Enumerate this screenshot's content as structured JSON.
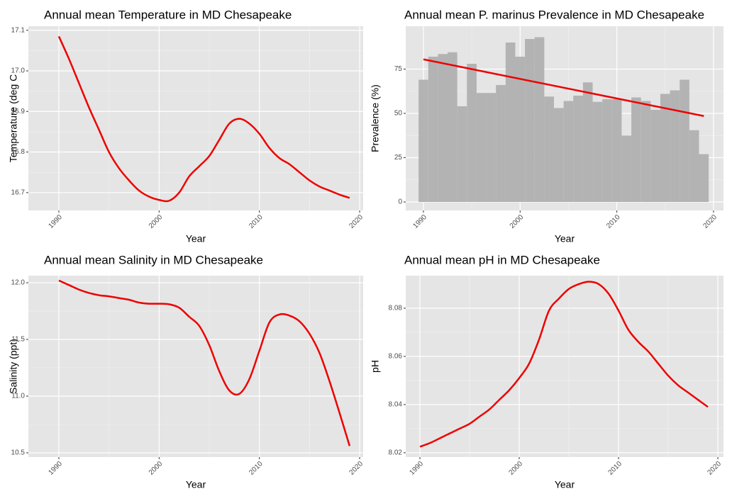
{
  "chart_data": [
    {
      "type": "line",
      "title": "Annual mean Temperature in MD Chesapeake",
      "x_label": "Year",
      "y_label": "Temperature (deg C",
      "x": [
        1990,
        1991,
        1992,
        1993,
        1994,
        1995,
        1996,
        1997,
        1998,
        1999,
        2000,
        2001,
        2002,
        2003,
        2004,
        2005,
        2006,
        2007,
        2008,
        2009,
        2010,
        2011,
        2012,
        2013,
        2014,
        2015,
        2016,
        2017,
        2018,
        2019
      ],
      "values": [
        17.085,
        17.03,
        16.97,
        16.91,
        16.855,
        16.8,
        16.76,
        16.73,
        16.705,
        16.69,
        16.682,
        16.68,
        16.7,
        16.74,
        16.765,
        16.79,
        16.83,
        16.87,
        16.882,
        16.87,
        16.845,
        16.81,
        16.785,
        16.77,
        16.75,
        16.73,
        16.715,
        16.705,
        16.695,
        16.687
      ],
      "color": "#ee0000",
      "xlim": [
        1986.96,
        2020.35
      ],
      "ylim": [
        16.656,
        17.11
      ],
      "xticks": [
        1990,
        2000,
        2010,
        2020
      ],
      "yticks": [
        16.7,
        16.8,
        16.9,
        {
          "value": 17,
          "label": "17.0"
        },
        17.1
      ],
      "grid": true
    },
    {
      "type": "bar",
      "title": "Annual mean P. marinus Prevalence in MD Chesapeake",
      "x_label": "Year",
      "y_label": "Prevalence (%)",
      "x": [
        1990,
        1991,
        1992,
        1993,
        1994,
        1995,
        1996,
        1997,
        1998,
        1999,
        2000,
        2001,
        2002,
        2003,
        2004,
        2005,
        2006,
        2007,
        2008,
        2009,
        2010,
        2011,
        2012,
        2013,
        2014,
        2015,
        2016,
        2017,
        2018,
        2019
      ],
      "values": [
        69,
        82,
        83.5,
        84.5,
        54,
        78,
        61.5,
        61.5,
        66,
        90,
        82,
        92,
        93,
        59.5,
        53,
        57,
        60,
        67.5,
        56.5,
        58,
        58,
        37.5,
        59,
        57,
        52,
        61,
        63,
        69,
        40.5,
        27
      ],
      "color": "#b3b3b3",
      "trendline": {
        "x": [
          1990,
          2019
        ],
        "values": [
          80.5,
          48.5
        ],
        "color": "#ee0000"
      },
      "xlim": [
        1988.17,
        2021.03
      ],
      "ylim": [
        -4.8,
        99.2
      ],
      "xticks": [
        1990,
        2000,
        2010,
        2020
      ],
      "yticks": [
        0,
        25,
        50,
        75
      ],
      "grid": true
    },
    {
      "type": "line",
      "title": "Annual mean Salinity in MD Chesapeake",
      "x_label": "Year",
      "y_label": "Salinity (ppt)",
      "x": [
        1990,
        1991,
        1992,
        1993,
        1994,
        1995,
        1996,
        1997,
        1998,
        1999,
        2000,
        2001,
        2002,
        2003,
        2004,
        2005,
        2006,
        2007,
        2008,
        2009,
        2010,
        2011,
        2012,
        2013,
        2014,
        2015,
        2016,
        2017,
        2018,
        2019
      ],
      "values": [
        12.02,
        11.98,
        11.94,
        11.91,
        11.89,
        11.88,
        11.865,
        11.85,
        11.825,
        11.815,
        11.815,
        11.81,
        11.78,
        11.7,
        11.62,
        11.45,
        11.22,
        11.05,
        11.02,
        11.15,
        11.4,
        11.65,
        11.72,
        11.71,
        11.66,
        11.55,
        11.38,
        11.13,
        10.85,
        10.56
      ],
      "color": "#ee0000",
      "xlim": [
        1986.96,
        2020.35
      ],
      "ylim": [
        10.4625,
        12.0625
      ],
      "xticks": [
        1990,
        2000,
        2010,
        2020
      ],
      "yticks": [
        10.5,
        {
          "value": 11,
          "label": "11.0"
        },
        11.5,
        {
          "value": 12,
          "label": "12.0"
        }
      ],
      "grid": true
    },
    {
      "type": "line",
      "title": "Annual mean pH in MD Chesapeake",
      "x_label": "Year",
      "y_label": "pH",
      "x": [
        1990,
        1991,
        1992,
        1993,
        1994,
        1995,
        1996,
        1997,
        1998,
        1999,
        2000,
        2001,
        2002,
        2003,
        2004,
        2005,
        2006,
        2007,
        2008,
        2009,
        2010,
        2011,
        2012,
        2013,
        2014,
        2015,
        2016,
        2017,
        2018,
        2019
      ],
      "values": [
        8.0225,
        8.024,
        8.026,
        8.028,
        8.03,
        8.032,
        8.035,
        8.038,
        8.042,
        8.046,
        8.051,
        8.057,
        8.067,
        8.079,
        8.084,
        8.088,
        8.09,
        8.091,
        8.09,
        8.086,
        8.079,
        8.071,
        8.066,
        8.062,
        8.057,
        8.052,
        8.048,
        8.045,
        8.042,
        8.039
      ],
      "color": "#ee0000",
      "xlim": [
        1988.57,
        2020.57
      ],
      "ylim": [
        8.0182,
        8.0935
      ],
      "xticks": [
        1990,
        2000,
        2010,
        2020
      ],
      "yticks": [
        8.02,
        8.04,
        8.06,
        8.08
      ],
      "grid": true
    }
  ]
}
